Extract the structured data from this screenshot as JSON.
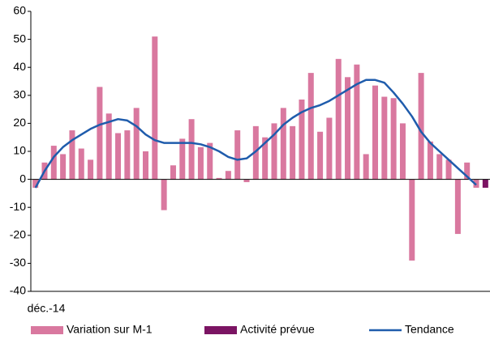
{
  "chart_data": {
    "type": "bar",
    "categories": [
      "déc.-14",
      null,
      null,
      null,
      null,
      null,
      null,
      null,
      null,
      null,
      null,
      null,
      null,
      null,
      null,
      null,
      null,
      null,
      null,
      null,
      null,
      null,
      null,
      null,
      null,
      null,
      null,
      null,
      null,
      null,
      null,
      null,
      null,
      null,
      null,
      null,
      null,
      null,
      null,
      null,
      null,
      null,
      null,
      null,
      null,
      null,
      null,
      null,
      null,
      null
    ],
    "series": [
      {
        "name": "Variation sur M-1",
        "type": "bar",
        "color": "#d9789f",
        "values": [
          -3,
          6,
          12,
          9,
          17.5,
          11,
          7,
          33,
          23.5,
          16.5,
          17.5,
          25.5,
          10,
          51,
          -11,
          5,
          14.5,
          21.5,
          11.5,
          13,
          0.5,
          3,
          17.5,
          -1,
          19,
          15,
          20,
          25.5,
          19,
          28.5,
          38,
          17,
          22,
          43,
          36.5,
          41,
          9,
          33.5,
          29.5,
          29,
          20,
          -29,
          38,
          13.5,
          9,
          7,
          -19.5,
          6,
          -3,
          null
        ]
      },
      {
        "name": "Activité prévue",
        "type": "bar",
        "color": "#7b1463",
        "values": [
          null,
          null,
          null,
          null,
          null,
          null,
          null,
          null,
          null,
          null,
          null,
          null,
          null,
          null,
          null,
          null,
          null,
          null,
          null,
          null,
          null,
          null,
          null,
          null,
          null,
          null,
          null,
          null,
          null,
          null,
          null,
          null,
          null,
          null,
          null,
          null,
          null,
          null,
          null,
          null,
          null,
          null,
          null,
          null,
          null,
          null,
          null,
          null,
          null,
          -3
        ]
      },
      {
        "name": "Tendance",
        "type": "line",
        "color": "#1f5cac",
        "values": [
          -3,
          3,
          8,
          11.5,
          14,
          16,
          18,
          19.5,
          20.5,
          21.5,
          21,
          19,
          16,
          14,
          13,
          13,
          13,
          13,
          12.5,
          11.5,
          10,
          8,
          7,
          7.5,
          10,
          13,
          16,
          19.5,
          22,
          24,
          25.5,
          26.5,
          28,
          30,
          32,
          34,
          35.5,
          35.5,
          34.5,
          31,
          27,
          22.5,
          17,
          13,
          10,
          7,
          4,
          1,
          -2,
          null
        ]
      }
    ],
    "ylim": [
      -40,
      60
    ],
    "yticks": [
      -40,
      -30,
      -20,
      -10,
      0,
      10,
      20,
      30,
      40,
      50,
      60
    ],
    "grid": false,
    "legend": "bottom"
  }
}
